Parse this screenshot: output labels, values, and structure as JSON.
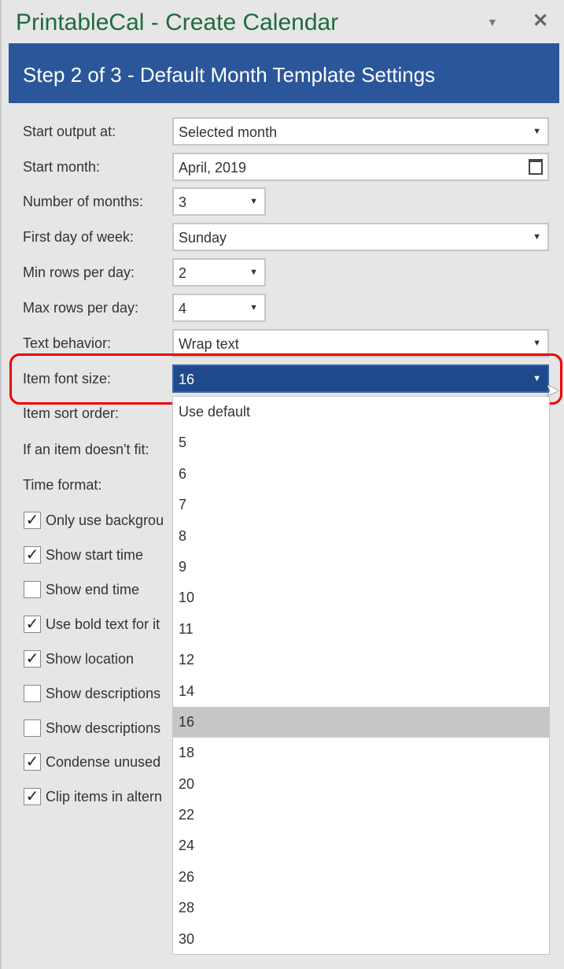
{
  "window": {
    "title": "PrintableCal - Create Calendar",
    "pin_icon": "triangle-down",
    "close_icon": "x"
  },
  "header": {
    "title": "Step 2 of 3 - Default Month Template Settings",
    "color": "#2b579a"
  },
  "fields": [
    {
      "label": "Start output at:",
      "value": "Selected month"
    },
    {
      "label": "Start month:",
      "value": "April, 2019"
    },
    {
      "label": "Number of months:",
      "value": "3"
    },
    {
      "label": "First day of week:",
      "value": "Sunday"
    },
    {
      "label": "Min rows per day:",
      "value": "2"
    },
    {
      "label": "Max rows per day:",
      "value": "4"
    },
    {
      "label": "Text behavior:",
      "value": "Wrap text"
    },
    {
      "label": "Item font size:",
      "value": "16"
    },
    {
      "label": "Item sort order:",
      "value": ""
    },
    {
      "label": "If an item doesn't fit:",
      "value": ""
    },
    {
      "label": "Time format:",
      "value": ""
    }
  ],
  "checkboxes": [
    {
      "label": "Only use backgrou",
      "checked": true
    },
    {
      "label": "Show start time",
      "checked": true
    },
    {
      "label": "Show end time",
      "checked": false
    },
    {
      "label": "Use bold text for it",
      "checked": true
    },
    {
      "label": "Show location",
      "checked": true
    },
    {
      "label": "Show descriptions",
      "checked": false
    },
    {
      "label": "Show descriptions",
      "checked": false
    },
    {
      "label": "Condense unused",
      "checked": true
    },
    {
      "label": "Clip items in altern",
      "checked": true
    }
  ],
  "dropdown": {
    "options": [
      "Use default",
      "5",
      "6",
      "7",
      "8",
      "9",
      "10",
      "11",
      "12",
      "14",
      "16",
      "18",
      "20",
      "22",
      "24",
      "26",
      "28",
      "30"
    ],
    "selected": "16"
  }
}
